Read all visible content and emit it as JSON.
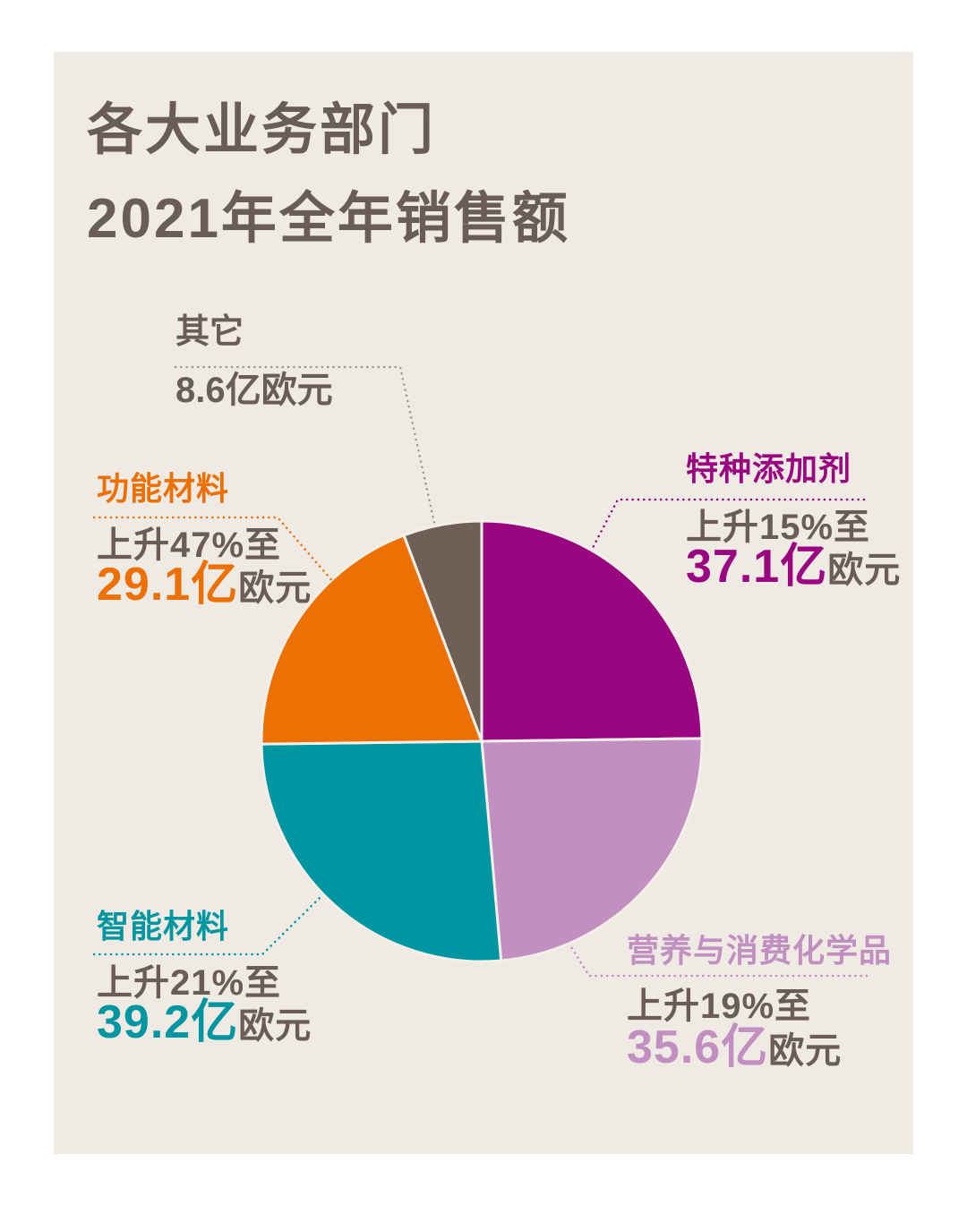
{
  "page": {
    "background": "#FFFFFF",
    "card_background": "#EFEAE3",
    "text_color": "#6A5D55",
    "slice_gap_color": "#F4EFE8",
    "other_connector_color": "#A2958B"
  },
  "title": {
    "line1": "各大业务部门",
    "line2": "2021年全年销售额"
  },
  "chart_data": {
    "type": "pie",
    "title": "各大业务部门2021年全年销售额",
    "unit": "亿欧元",
    "start_angle": "top",
    "direction": "clockwise",
    "legend_position": "around-pie",
    "segments": [
      {
        "id": "specialty",
        "label": "特种添加剂",
        "value": 37.1,
        "change": "上升15%至",
        "amount": "37.1亿",
        "unit": "欧元",
        "color": "#99067F"
      },
      {
        "id": "nutrition",
        "label": "营养与消费化学品",
        "value": 35.6,
        "change": "上升19%至",
        "amount": "35.6亿",
        "unit": "欧元",
        "color": "#C28FC1"
      },
      {
        "id": "smart",
        "label": "智能材料",
        "value": 39.2,
        "change": "上升21%至",
        "amount": "39.2亿",
        "unit": "欧元",
        "color": "#0096A1"
      },
      {
        "id": "functional",
        "label": "功能材料",
        "value": 29.1,
        "change": "上升47%至",
        "amount": "29.1亿",
        "unit": "欧元",
        "color": "#EC7004"
      },
      {
        "id": "other",
        "label": "其它",
        "value": 8.6,
        "amount_full": "8.6亿欧元",
        "color": "#6F6057"
      }
    ]
  }
}
